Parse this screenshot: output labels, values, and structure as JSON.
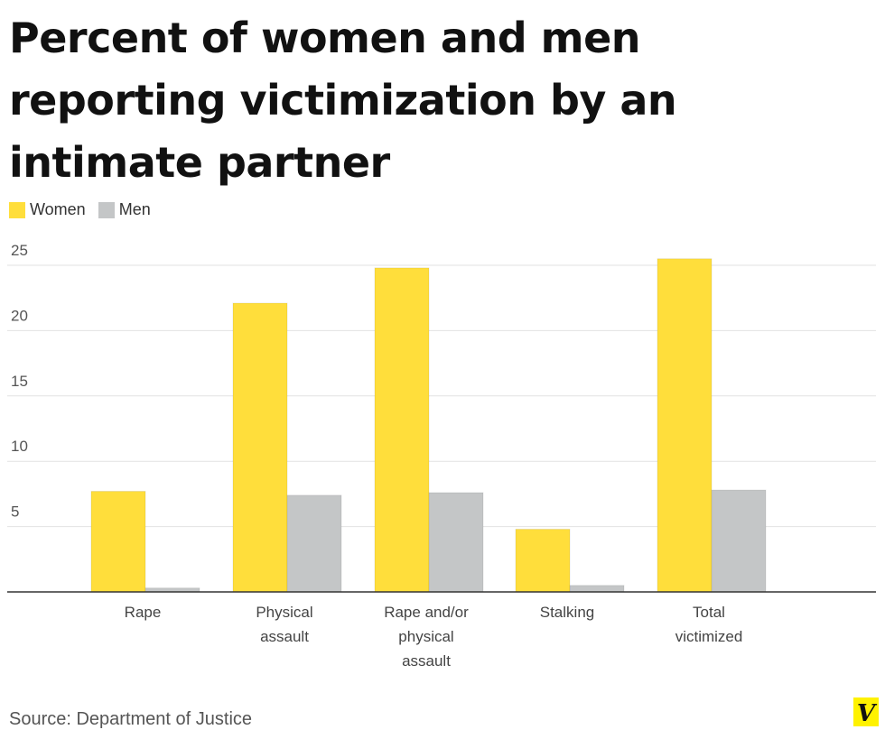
{
  "chart_data": {
    "type": "bar",
    "title": "Percent of women and men reporting victimization by an intimate partner",
    "categories": [
      [
        "Rape"
      ],
      [
        "Physical",
        "assault"
      ],
      [
        "Rape and/or",
        "physical",
        "assault"
      ],
      [
        "Stalking"
      ],
      [
        "Total",
        "victimized"
      ]
    ],
    "series": [
      {
        "name": "Women",
        "color": "#FFDE3B",
        "values": [
          7.7,
          22.1,
          24.8,
          4.8,
          25.5
        ]
      },
      {
        "name": "Men",
        "color": "#C4C6C7",
        "values": [
          0.3,
          7.4,
          7.6,
          0.5,
          7.8
        ]
      }
    ],
    "yticks": [
      5,
      10,
      15,
      20,
      25
    ],
    "ylim": [
      0,
      25
    ],
    "legend_position": "top-left",
    "grid": true
  },
  "source": "Source: Department of Justice",
  "logo_letter": "V",
  "logo_color": "#FFF200"
}
